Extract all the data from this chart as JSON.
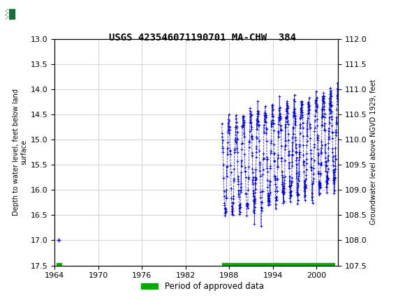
{
  "title": "USGS 423546071190701 MA-CHW  384",
  "ylabel_left": "Depth to water level, feet below land\nsurface",
  "ylabel_right": "Groundwater level above NGVD 1929, feet",
  "xlim": [
    1964,
    2003
  ],
  "ylim_left": [
    13.0,
    17.5
  ],
  "ylim_right": [
    107.5,
    112.0
  ],
  "xticks": [
    1964,
    1970,
    1976,
    1982,
    1988,
    1994,
    2000
  ],
  "yticks_left": [
    13.0,
    13.5,
    14.0,
    14.5,
    15.0,
    15.5,
    16.0,
    16.5,
    17.0,
    17.5
  ],
  "yticks_right": [
    107.5,
    108.0,
    108.5,
    109.0,
    109.5,
    110.0,
    110.5,
    111.0,
    111.5,
    112.0
  ],
  "header_color": "#1a6e3c",
  "data_color": "#0000cc",
  "approved_color": "#00aa00",
  "legend_label": "Period of approved data",
  "approved_xstart": 1987.0,
  "approved_xend": 2002.6,
  "approved_xstart2": 1964.3,
  "approved_xend2": 1965.0,
  "single_point_x": 1964.5,
  "single_point_y": 17.0,
  "bg_color": "#ffffff",
  "grid_color": "#cccccc",
  "title_fontsize": 10,
  "tick_fontsize": 8,
  "label_fontsize": 7
}
